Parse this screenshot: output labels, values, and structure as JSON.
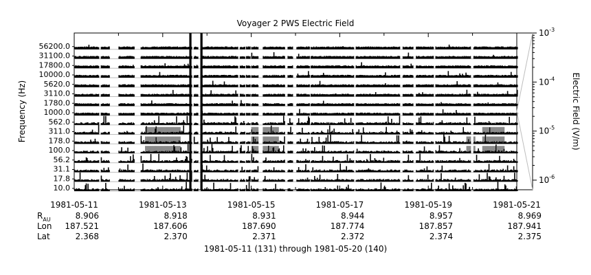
{
  "chart_data": {
    "type": "heatmap",
    "title": "Voyager 2 PWS Electric Field",
    "ylabel": "Frequency (Hz)",
    "colorbar_label": "Electric Field (V/m)",
    "colorbar_scale": "log",
    "colorbar_range": [
      "1e-6",
      "1e-3"
    ],
    "colorbar_ticks": [
      {
        "base": "10",
        "exp": "-3",
        "value": 0.001
      },
      {
        "base": "10",
        "exp": "-4",
        "value": 0.0001
      },
      {
        "base": "10",
        "exp": "-5",
        "value": 1e-05
      },
      {
        "base": "10",
        "exp": "-6",
        "value": 1e-06
      }
    ],
    "channels_hz": [
      "56200.0",
      "31100.0",
      "17800.0",
      "10000.0",
      "5620.0",
      "3110.0",
      "1780.0",
      "1000.0",
      "562.0",
      "311.0",
      "178.0",
      "100.0",
      "56.2",
      "31.1",
      "17.8",
      "10.0"
    ],
    "x_start_day": 131,
    "x_range_days": [
      0,
      10
    ],
    "date_ticks": [
      "1981-05-11",
      "1981-05-13",
      "1981-05-15",
      "1981-05-17",
      "1981-05-19",
      "1981-05-21"
    ],
    "ephemeris": [
      {
        "label": "R",
        "sub": "AU",
        "values": [
          "8.906",
          "8.918",
          "8.931",
          "8.944",
          "8.957",
          "8.969"
        ]
      },
      {
        "label": "Lon",
        "sub": "",
        "values": [
          "187.521",
          "187.606",
          "187.690",
          "187.774",
          "187.857",
          "187.941"
        ]
      },
      {
        "label": "Lat",
        "sub": "",
        "values": [
          "2.368",
          "2.370",
          "2.371",
          "2.372",
          "2.374",
          "2.375"
        ]
      }
    ],
    "xlabel": "1981-05-11 (131) through 1981-05-20 (140)",
    "data_gaps_days": [
      [
        0.55,
        0.6
      ],
      [
        0.8,
        1.0
      ],
      [
        1.35,
        1.5
      ],
      [
        2.65,
        2.7
      ],
      [
        2.8,
        2.85
      ],
      [
        3.7,
        3.73
      ],
      [
        3.85,
        3.87
      ],
      [
        3.97,
        4.0
      ],
      [
        4.15,
        4.25
      ],
      [
        4.75,
        4.8
      ],
      [
        4.92,
        5.0
      ],
      [
        5.3,
        5.33
      ],
      [
        6.3,
        6.35
      ],
      [
        7.35,
        7.4
      ],
      [
        7.65,
        7.7
      ],
      [
        8.1,
        8.15
      ],
      [
        8.95,
        9.0
      ]
    ],
    "saturated_intervals_days": [
      [
        2.6,
        2.65
      ],
      [
        2.85,
        2.9
      ]
    ],
    "enhanced_low_freq_intervals": [
      {
        "days": [
          1.6,
          2.4
        ],
        "channels": [
          "311.0",
          "178.0",
          "100.0"
        ]
      },
      {
        "days": [
          4.0,
          4.6
        ],
        "channels": [
          "311.0",
          "178.0",
          "100.0"
        ]
      },
      {
        "days": [
          8.85,
          9.05
        ],
        "channels": [
          "178.0",
          "100.0"
        ]
      },
      {
        "days": [
          9.2,
          9.7
        ],
        "channels": [
          "311.0",
          "178.0",
          "100.0"
        ]
      }
    ]
  }
}
